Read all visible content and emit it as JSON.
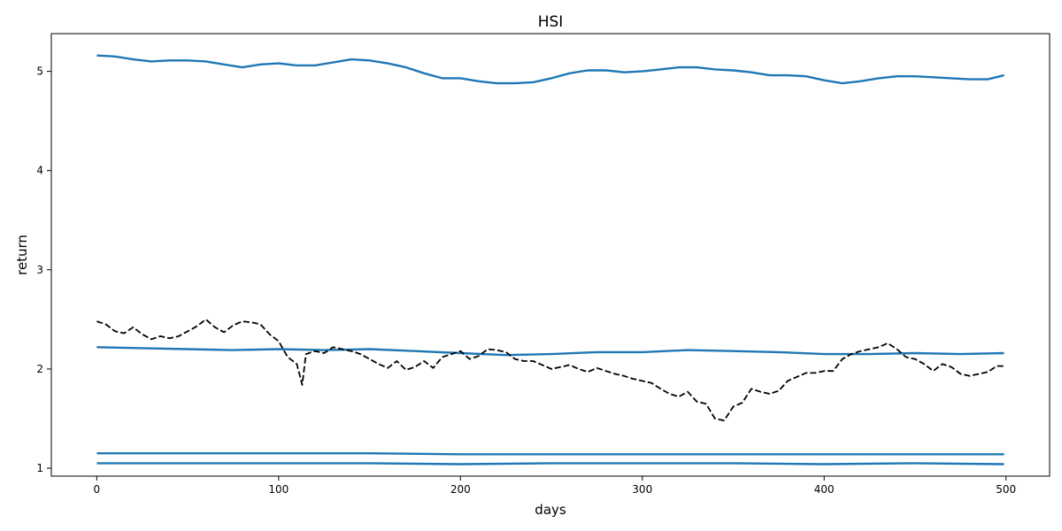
{
  "chart_data": {
    "type": "line",
    "title": "HSI",
    "xlabel": "days",
    "ylabel": "return",
    "xlim": [
      -25,
      524
    ],
    "ylim": [
      0.92,
      5.38
    ],
    "x_ticks": [
      0,
      100,
      200,
      300,
      400,
      500
    ],
    "y_ticks": [
      1,
      2,
      3,
      4,
      5
    ],
    "grid": false,
    "legend": "none",
    "series": [
      {
        "style": "solid",
        "color": "#1f77b4",
        "x": [
          0,
          10,
          20,
          30,
          40,
          50,
          60,
          70,
          80,
          90,
          100,
          110,
          120,
          130,
          140,
          150,
          160,
          170,
          180,
          190,
          200,
          210,
          220,
          230,
          240,
          250,
          260,
          270,
          280,
          290,
          300,
          310,
          320,
          330,
          340,
          350,
          360,
          370,
          380,
          390,
          400,
          410,
          420,
          430,
          440,
          450,
          460,
          470,
          480,
          490,
          499
        ],
        "y": [
          5.16,
          5.15,
          5.12,
          5.1,
          5.11,
          5.11,
          5.1,
          5.07,
          5.04,
          5.07,
          5.08,
          5.06,
          5.06,
          5.09,
          5.12,
          5.11,
          5.08,
          5.04,
          4.98,
          4.93,
          4.93,
          4.9,
          4.88,
          4.88,
          4.89,
          4.93,
          4.98,
          5.01,
          5.01,
          4.99,
          5.0,
          5.02,
          5.04,
          5.04,
          5.02,
          5.01,
          4.99,
          4.96,
          4.96,
          4.95,
          4.91,
          4.88,
          4.9,
          4.93,
          4.95,
          4.95,
          4.94,
          4.93,
          4.92,
          4.92,
          4.96
        ]
      },
      {
        "style": "solid",
        "color": "#1f77b4",
        "x": [
          0,
          25,
          50,
          75,
          100,
          125,
          150,
          175,
          200,
          225,
          250,
          275,
          300,
          325,
          350,
          375,
          400,
          425,
          450,
          475,
          499
        ],
        "y": [
          2.22,
          2.21,
          2.2,
          2.19,
          2.2,
          2.19,
          2.2,
          2.18,
          2.16,
          2.14,
          2.15,
          2.17,
          2.17,
          2.19,
          2.18,
          2.17,
          2.15,
          2.15,
          2.16,
          2.15,
          2.16
        ]
      },
      {
        "style": "solid",
        "color": "#1f77b4",
        "x": [
          0,
          50,
          100,
          150,
          200,
          250,
          300,
          350,
          400,
          450,
          499
        ],
        "y": [
          1.15,
          1.15,
          1.15,
          1.15,
          1.14,
          1.14,
          1.14,
          1.14,
          1.14,
          1.14,
          1.14
        ]
      },
      {
        "style": "solid",
        "color": "#1f77b4",
        "x": [
          0,
          50,
          100,
          150,
          200,
          250,
          300,
          350,
          400,
          450,
          499
        ],
        "y": [
          1.05,
          1.05,
          1.05,
          1.05,
          1.04,
          1.05,
          1.05,
          1.05,
          1.04,
          1.05,
          1.04
        ]
      },
      {
        "style": "dashed",
        "color": "#000000",
        "x": [
          0,
          5,
          10,
          15,
          20,
          25,
          30,
          35,
          40,
          45,
          50,
          55,
          60,
          65,
          70,
          75,
          80,
          85,
          90,
          95,
          100,
          105,
          110,
          113,
          115,
          120,
          125,
          130,
          135,
          140,
          145,
          150,
          155,
          160,
          165,
          170,
          175,
          180,
          185,
          190,
          195,
          200,
          205,
          210,
          215,
          220,
          225,
          230,
          235,
          240,
          245,
          250,
          255,
          260,
          265,
          270,
          275,
          280,
          285,
          290,
          295,
          300,
          305,
          310,
          315,
          320,
          325,
          330,
          335,
          340,
          345,
          350,
          355,
          360,
          365,
          370,
          375,
          380,
          385,
          390,
          395,
          400,
          405,
          410,
          415,
          420,
          425,
          430,
          435,
          440,
          445,
          450,
          455,
          460,
          465,
          470,
          475,
          480,
          485,
          490,
          495,
          499
        ],
        "y": [
          2.48,
          2.45,
          2.38,
          2.36,
          2.42,
          2.35,
          2.3,
          2.33,
          2.31,
          2.33,
          2.38,
          2.43,
          2.5,
          2.42,
          2.37,
          2.44,
          2.48,
          2.47,
          2.45,
          2.35,
          2.28,
          2.12,
          2.05,
          1.84,
          2.15,
          2.18,
          2.16,
          2.22,
          2.2,
          2.18,
          2.15,
          2.1,
          2.05,
          2.01,
          2.08,
          1.99,
          2.02,
          2.08,
          2.01,
          2.12,
          2.15,
          2.18,
          2.1,
          2.13,
          2.2,
          2.19,
          2.17,
          2.1,
          2.08,
          2.08,
          2.04,
          2.0,
          2.02,
          2.04,
          2.0,
          1.97,
          2.01,
          1.98,
          1.95,
          1.93,
          1.9,
          1.88,
          1.86,
          1.8,
          1.75,
          1.72,
          1.77,
          1.67,
          1.65,
          1.5,
          1.48,
          1.62,
          1.66,
          1.8,
          1.77,
          1.75,
          1.78,
          1.88,
          1.92,
          1.96,
          1.96,
          1.98,
          1.98,
          2.1,
          2.15,
          2.18,
          2.2,
          2.22,
          2.26,
          2.2,
          2.12,
          2.1,
          2.05,
          1.98,
          2.05,
          2.02,
          1.95,
          1.93,
          1.95,
          1.97,
          2.03,
          2.03
        ]
      }
    ]
  }
}
